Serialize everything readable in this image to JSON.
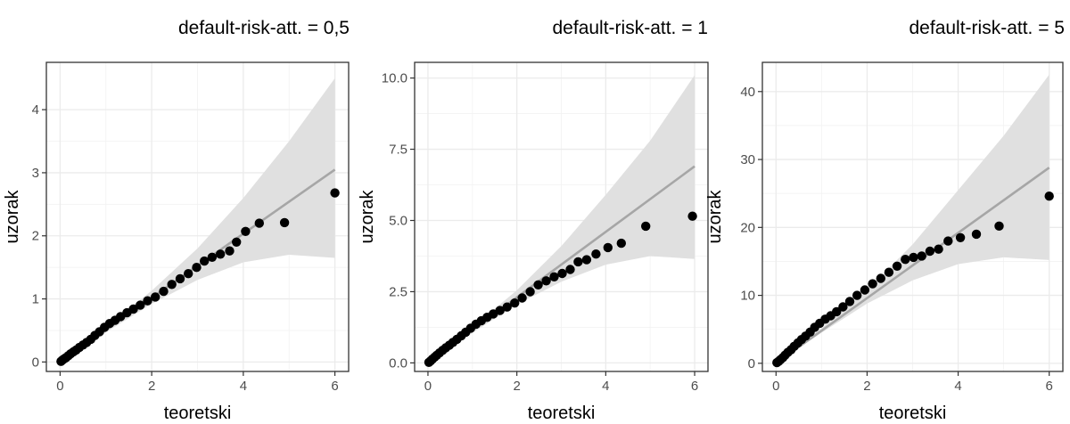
{
  "chart_data": [
    {
      "type": "scatter",
      "title": "default-risk-att. = 0,5",
      "xlabel": "teoretski",
      "ylabel": "uzorak",
      "xlim": [
        -0.3,
        6.3
      ],
      "ylim": [
        -0.15,
        4.75
      ],
      "x_ticks": [
        0,
        2,
        4,
        6
      ],
      "x_tick_labels": [
        "0",
        "2",
        "4",
        "6"
      ],
      "y_ticks": [
        0,
        1,
        2,
        3,
        4
      ],
      "y_tick_labels": [
        "0",
        "1",
        "2",
        "3",
        "4"
      ],
      "grid": true,
      "reference_line": {
        "x": [
          0,
          6
        ],
        "y": [
          0,
          3.05
        ]
      },
      "confidence_band": {
        "x": [
          0,
          1,
          2,
          3,
          4,
          5,
          6
        ],
        "lower": [
          0,
          0.47,
          0.92,
          1.3,
          1.58,
          1.7,
          1.65
        ],
        "upper": [
          0,
          0.56,
          1.13,
          1.8,
          2.6,
          3.5,
          4.5
        ]
      },
      "points": {
        "x": [
          0.02,
          0.05,
          0.09,
          0.13,
          0.18,
          0.23,
          0.29,
          0.35,
          0.42,
          0.5,
          0.58,
          0.67,
          0.76,
          0.86,
          0.97,
          1.08,
          1.2,
          1.32,
          1.46,
          1.6,
          1.75,
          1.91,
          2.08,
          2.26,
          2.44,
          2.62,
          2.8,
          2.98,
          3.15,
          3.32,
          3.5,
          3.7,
          3.85,
          4.05,
          4.35,
          4.9,
          6.0
        ],
        "y": [
          0.01,
          0.03,
          0.05,
          0.07,
          0.1,
          0.13,
          0.16,
          0.19,
          0.23,
          0.27,
          0.31,
          0.36,
          0.42,
          0.48,
          0.55,
          0.61,
          0.66,
          0.72,
          0.78,
          0.84,
          0.9,
          0.97,
          1.03,
          1.12,
          1.23,
          1.32,
          1.4,
          1.5,
          1.6,
          1.66,
          1.71,
          1.76,
          1.9,
          2.07,
          2.2,
          2.21,
          2.68
        ]
      }
    },
    {
      "type": "scatter",
      "title": "default-risk-att. = 1",
      "xlabel": "teoretski",
      "ylabel": "uzorak",
      "xlim": [
        -0.3,
        6.3
      ],
      "ylim": [
        -0.3,
        10.55
      ],
      "x_ticks": [
        0,
        2,
        4,
        6
      ],
      "x_tick_labels": [
        "0",
        "2",
        "4",
        "6"
      ],
      "y_ticks": [
        0,
        2.5,
        5,
        7.5,
        10
      ],
      "y_tick_labels": [
        "0.0",
        "2.5",
        "5.0",
        "7.5",
        "10.0"
      ],
      "grid": true,
      "reference_line": {
        "x": [
          0,
          6
        ],
        "y": [
          0,
          6.9
        ]
      },
      "confidence_band": {
        "x": [
          0,
          1,
          2,
          3,
          4,
          5,
          6
        ],
        "lower": [
          0,
          1.05,
          2.05,
          2.85,
          3.45,
          3.75,
          3.65
        ],
        "upper": [
          0,
          1.25,
          2.55,
          4.1,
          5.9,
          7.8,
          10.1
        ]
      },
      "points": {
        "x": [
          0.02,
          0.06,
          0.1,
          0.15,
          0.2,
          0.26,
          0.33,
          0.4,
          0.48,
          0.56,
          0.65,
          0.75,
          0.85,
          0.96,
          1.08,
          1.2,
          1.33,
          1.47,
          1.62,
          1.78,
          1.95,
          2.12,
          2.3,
          2.48,
          2.66,
          2.84,
          3.02,
          3.2,
          3.38,
          3.57,
          3.78,
          4.05,
          4.35,
          4.9,
          5.95
        ],
        "y": [
          0.02,
          0.07,
          0.13,
          0.2,
          0.27,
          0.35,
          0.44,
          0.53,
          0.62,
          0.72,
          0.83,
          0.95,
          1.08,
          1.22,
          1.36,
          1.48,
          1.6,
          1.72,
          1.84,
          1.96,
          2.1,
          2.28,
          2.5,
          2.74,
          2.88,
          3.02,
          3.14,
          3.28,
          3.55,
          3.62,
          3.82,
          4.05,
          4.2,
          4.8,
          5.15
        ]
      }
    },
    {
      "type": "scatter",
      "title": "default-risk-att. = 5",
      "xlabel": "teoretski",
      "ylabel": "uzorak",
      "xlim": [
        -0.3,
        6.3
      ],
      "ylim": [
        -1.2,
        44.3
      ],
      "x_ticks": [
        0,
        2,
        4,
        6
      ],
      "x_tick_labels": [
        "0",
        "2",
        "4",
        "6"
      ],
      "y_ticks": [
        0,
        10,
        20,
        30,
        40
      ],
      "y_tick_labels": [
        "0",
        "10",
        "20",
        "30",
        "40"
      ],
      "grid": true,
      "reference_line": {
        "x": [
          0,
          6
        ],
        "y": [
          0,
          28.8
        ]
      },
      "confidence_band": {
        "x": [
          0,
          1,
          2,
          3,
          4,
          5,
          6
        ],
        "lower": [
          0,
          4.5,
          8.8,
          12.2,
          14.6,
          15.6,
          15.2
        ],
        "upper": [
          0,
          5.2,
          10.8,
          17.5,
          25.5,
          33.5,
          42.5
        ]
      },
      "points": {
        "x": [
          0.02,
          0.06,
          0.1,
          0.15,
          0.2,
          0.26,
          0.33,
          0.4,
          0.48,
          0.56,
          0.65,
          0.75,
          0.85,
          0.96,
          1.08,
          1.2,
          1.33,
          1.47,
          1.62,
          1.78,
          1.95,
          2.12,
          2.3,
          2.48,
          2.66,
          2.84,
          3.02,
          3.2,
          3.38,
          3.57,
          3.78,
          4.05,
          4.4,
          4.9,
          6.0
        ],
        "y": [
          0.1,
          0.3,
          0.55,
          0.85,
          1.2,
          1.6,
          2.0,
          2.5,
          3.0,
          3.5,
          4.0,
          4.6,
          5.3,
          5.9,
          6.5,
          7.0,
          7.6,
          8.3,
          9.1,
          10.0,
          10.8,
          11.7,
          12.5,
          13.4,
          14.3,
          15.3,
          15.6,
          15.8,
          16.5,
          16.8,
          18.0,
          18.5,
          19.0,
          20.2,
          24.6
        ]
      }
    }
  ]
}
